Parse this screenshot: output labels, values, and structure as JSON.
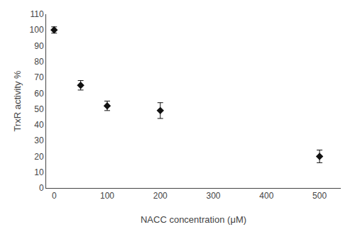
{
  "chart_data": {
    "type": "scatter",
    "x": [
      0,
      50,
      100,
      200,
      500
    ],
    "values": [
      100,
      65,
      52,
      49,
      20
    ],
    "yerr": [
      2,
      3,
      3,
      5,
      4
    ],
    "color": "#111111",
    "marker": "diamond",
    "xlabel": "NACC concentration (μM)",
    "ylabel": "TrxR activity %",
    "xlim": [
      -15,
      540
    ],
    "ylim": [
      0,
      110
    ],
    "xticks": [
      0,
      100,
      200,
      300,
      400,
      500
    ],
    "yticks": [
      0,
      10,
      20,
      30,
      40,
      50,
      60,
      70,
      80,
      90,
      100,
      110
    ],
    "grid": false
  }
}
